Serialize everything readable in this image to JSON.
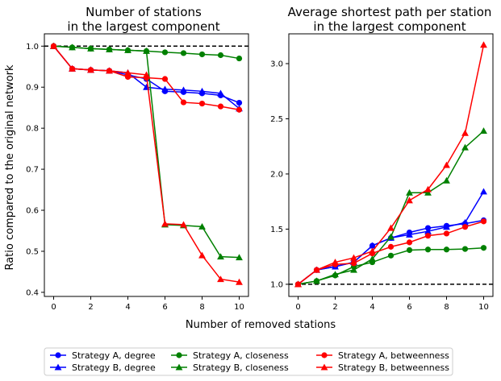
{
  "figure": {
    "ylabel": "Ratio compared to the original network",
    "xlabel": "Number of removed stations"
  },
  "chart_data": [
    {
      "type": "line",
      "title": [
        "Number of stations",
        "in the largest component"
      ],
      "xlim": [
        -0.5,
        10.5
      ],
      "ylim": [
        0.39,
        1.03
      ],
      "xticks": [
        0,
        2,
        4,
        6,
        8,
        10
      ],
      "yticks": [
        0.4,
        0.5,
        0.6,
        0.7,
        0.8,
        0.9,
        1.0
      ],
      "ytick_labels": [
        "0.4",
        "0.5",
        "0.6",
        "0.7",
        "0.8",
        "0.9",
        "1.0"
      ],
      "reference_line": 1.0,
      "x": [
        0,
        1,
        2,
        3,
        4,
        5,
        6,
        7,
        8,
        9,
        10
      ],
      "series": [
        {
          "name": "Strategy A, degree",
          "color": "#0000ff",
          "marker": "circle",
          "values": [
            1.0,
            0.945,
            0.942,
            0.94,
            0.93,
            0.92,
            0.89,
            0.888,
            0.885,
            0.88,
            0.862
          ]
        },
        {
          "name": "Strategy B, degree",
          "color": "#0000ff",
          "marker": "triangle",
          "values": [
            1.0,
            0.945,
            0.942,
            0.94,
            0.935,
            0.9,
            0.895,
            0.893,
            0.89,
            0.885,
            0.848
          ]
        },
        {
          "name": "Strategy A, closeness",
          "color": "#008000",
          "marker": "circle",
          "values": [
            1.0,
            0.997,
            0.994,
            0.992,
            0.99,
            0.988,
            0.985,
            0.983,
            0.98,
            0.978,
            0.97
          ]
        },
        {
          "name": "Strategy B, closeness",
          "color": "#008000",
          "marker": "triangle",
          "values": [
            1.0,
            0.997,
            0.994,
            0.992,
            0.99,
            0.988,
            0.565,
            0.563,
            0.56,
            0.487,
            0.485
          ]
        },
        {
          "name": "Strategy A, betweenness",
          "color": "#ff0000",
          "marker": "circle",
          "values": [
            1.0,
            0.945,
            0.942,
            0.94,
            0.925,
            0.923,
            0.92,
            0.863,
            0.86,
            0.853,
            0.845
          ]
        },
        {
          "name": "Strategy B, betweenness",
          "color": "#ff0000",
          "marker": "triangle",
          "values": [
            1.0,
            0.945,
            0.942,
            0.94,
            0.935,
            0.93,
            0.567,
            0.565,
            0.49,
            0.432,
            0.425
          ]
        }
      ]
    },
    {
      "type": "line",
      "title": [
        "Average shortest path per station",
        "in the largest component"
      ],
      "xlim": [
        -0.5,
        10.5
      ],
      "ylim": [
        0.89,
        3.27
      ],
      "xticks": [
        0,
        2,
        4,
        6,
        8,
        10
      ],
      "yticks": [
        1.0,
        1.5,
        2.0,
        2.5,
        3.0
      ],
      "ytick_labels": [
        "1.0",
        "1.5",
        "2.0",
        "2.5",
        "3.0"
      ],
      "reference_line": 1.0,
      "x": [
        0,
        1,
        2,
        3,
        4,
        5,
        6,
        7,
        8,
        9,
        10
      ],
      "series": [
        {
          "name": "Strategy A, degree",
          "color": "#0000ff",
          "marker": "circle",
          "values": [
            1.0,
            1.13,
            1.16,
            1.2,
            1.35,
            1.42,
            1.47,
            1.51,
            1.53,
            1.55,
            1.58
          ]
        },
        {
          "name": "Strategy B, degree",
          "color": "#0000ff",
          "marker": "triangle",
          "values": [
            1.0,
            1.13,
            1.16,
            1.2,
            1.35,
            1.42,
            1.45,
            1.48,
            1.52,
            1.56,
            1.84
          ]
        },
        {
          "name": "Strategy A, closeness",
          "color": "#008000",
          "marker": "circle",
          "values": [
            1.0,
            1.03,
            1.08,
            1.16,
            1.2,
            1.26,
            1.31,
            1.315,
            1.315,
            1.32,
            1.33
          ]
        },
        {
          "name": "Strategy B, closeness",
          "color": "#008000",
          "marker": "triangle",
          "values": [
            1.0,
            1.03,
            1.09,
            1.13,
            1.23,
            1.43,
            1.83,
            1.83,
            1.94,
            2.24,
            2.39
          ]
        },
        {
          "name": "Strategy A, betweenness",
          "color": "#ff0000",
          "marker": "circle",
          "values": [
            1.0,
            1.13,
            1.18,
            1.19,
            1.28,
            1.34,
            1.38,
            1.44,
            1.46,
            1.52,
            1.57
          ]
        },
        {
          "name": "Strategy B, betweenness",
          "color": "#ff0000",
          "marker": "triangle",
          "values": [
            1.0,
            1.13,
            1.2,
            1.24,
            1.3,
            1.51,
            1.76,
            1.86,
            2.08,
            2.37,
            3.17
          ]
        }
      ]
    }
  ]
}
